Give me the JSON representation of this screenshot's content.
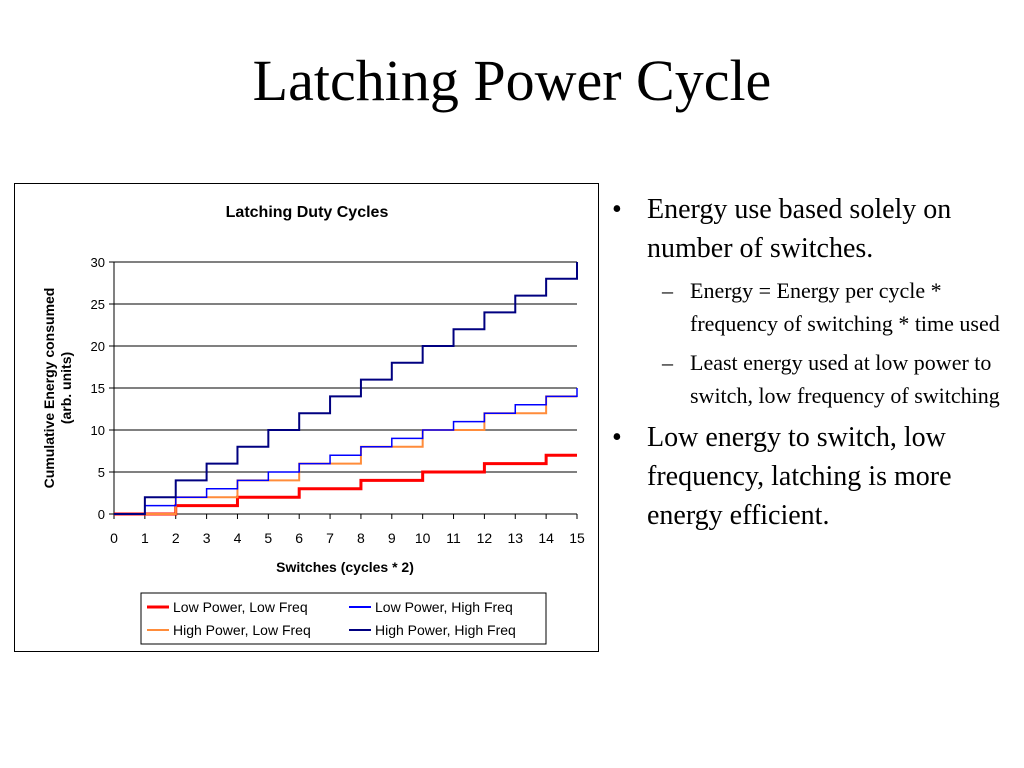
{
  "slide": {
    "title": "Latching Power Cycle",
    "bullets": [
      {
        "text": "Energy use based solely on number of switches.",
        "sub": [
          "Energy = Energy per cycle * frequency of switching * time used",
          "Least energy used at low power to switch, low frequency of switching"
        ]
      },
      {
        "text": "Low energy to switch, low frequency, latching is more energy efficient.",
        "sub": []
      }
    ],
    "bullet_glyph": "•",
    "sub_bullet_glyph": "–"
  },
  "chart_data": {
    "type": "line",
    "step": true,
    "title": "Latching Duty Cycles",
    "xlabel": "Switches (cycles * 2)",
    "ylabel": "Cumulative Energy consumed (arb. units)",
    "xlim": [
      0,
      15
    ],
    "ylim": [
      0,
      30
    ],
    "xticks": [
      0,
      1,
      2,
      3,
      4,
      5,
      6,
      7,
      8,
      9,
      10,
      11,
      12,
      13,
      14,
      15
    ],
    "yticks": [
      0,
      5,
      10,
      15,
      20,
      25,
      30
    ],
    "grid": "horizontal",
    "legend_position": "bottom",
    "series": [
      {
        "name": "Low Power, Low Freq",
        "color": "#ff0000",
        "width": 3,
        "x": [
          0,
          1,
          2,
          3,
          4,
          5,
          6,
          7,
          8,
          9,
          10,
          11,
          12,
          13,
          14,
          15
        ],
        "y": [
          0,
          0,
          1,
          1,
          2,
          2,
          3,
          3,
          4,
          4,
          5,
          5,
          6,
          6,
          7,
          7
        ]
      },
      {
        "name": "High Power, Low Freq",
        "color": "#ff8c3a",
        "width": 2,
        "x": [
          0,
          1,
          2,
          3,
          4,
          5,
          6,
          7,
          8,
          9,
          10,
          11,
          12,
          13,
          14,
          15
        ],
        "y": [
          0,
          0,
          2,
          2,
          4,
          4,
          6,
          6,
          8,
          8,
          10,
          10,
          12,
          12,
          14,
          14
        ]
      },
      {
        "name": "Low Power, High Freq",
        "color": "#0000ff",
        "width": 1.5,
        "x": [
          0,
          1,
          2,
          3,
          4,
          5,
          6,
          7,
          8,
          9,
          10,
          11,
          12,
          13,
          14,
          15
        ],
        "y": [
          0,
          1,
          2,
          3,
          4,
          5,
          6,
          7,
          8,
          9,
          10,
          11,
          12,
          13,
          14,
          15
        ]
      },
      {
        "name": "High Power, High Freq",
        "color": "#000080",
        "width": 2,
        "x": [
          0,
          1,
          2,
          3,
          4,
          5,
          6,
          7,
          8,
          9,
          10,
          11,
          12,
          13,
          14,
          15
        ],
        "y": [
          0,
          2,
          4,
          6,
          8,
          10,
          12,
          14,
          16,
          18,
          20,
          22,
          24,
          26,
          28,
          30
        ]
      }
    ],
    "legend_order": [
      "Low Power, Low Freq",
      "Low Power, High Freq",
      "High Power, Low Freq",
      "High Power, High Freq"
    ]
  }
}
